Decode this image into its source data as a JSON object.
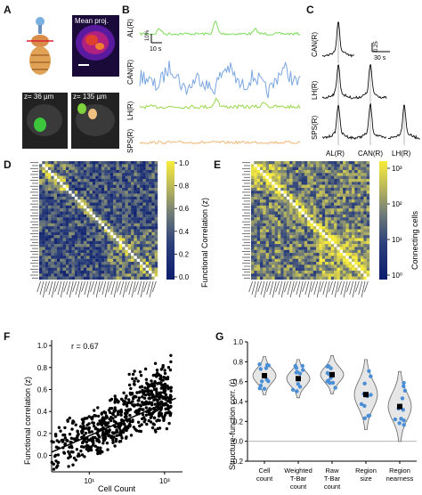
{
  "panels": {
    "A": {
      "letter": "A",
      "mean_proj_label": "Mean proj.",
      "z1_label": "z= 36  µm",
      "z2_label": "z= 135 µm"
    },
    "B": {
      "letter": "B",
      "traces": [
        {
          "label": "AL(R)",
          "color": "#7ddc5a"
        },
        {
          "label": "CAN(R)",
          "color": "#7aa6e0"
        },
        {
          "label": "LH(R)",
          "color": "#9ad64b"
        },
        {
          "label": "SPS(R)",
          "color": "#f0b673"
        }
      ],
      "scale_y": "10%",
      "scale_x": "10 s"
    },
    "C": {
      "letter": "C",
      "row_labels": [
        "CAN(R)",
        "LH(R)",
        "SPS(R)"
      ],
      "col_labels": [
        "AL(R)",
        "CAN(R)",
        "LH(R)"
      ],
      "scale_y": "0.25",
      "scale_x": "30 s"
    },
    "D": {
      "letter": "D",
      "colorbar_label": "Functional Correlation (z)",
      "colorbar_ticks": [
        "1.0",
        "0.8",
        "0.6",
        "0.4",
        "0.2",
        "0.0"
      ]
    },
    "E": {
      "letter": "E",
      "colorbar_label": "Connecting cells",
      "colorbar_ticks": [
        "10³",
        "10²",
        "10¹",
        "10⁰"
      ]
    },
    "F": {
      "letter": "F",
      "annotation": "r = 0.67",
      "xlabel": "Cell Count",
      "ylabel": "Functional correlation (z)"
    },
    "G": {
      "letter": "G",
      "ylabel": "Structure-function corr. (r)"
    }
  },
  "chart_data": [
    {
      "type": "scatter",
      "panel": "F",
      "title": "",
      "xlabel": "Cell Count",
      "ylabel": "Functional correlation (z)",
      "x_scale": "log",
      "xlim": [
        1,
        3000
      ],
      "ylim": [
        -0.15,
        1.05
      ],
      "xticks": [
        "10¹",
        "10³"
      ],
      "yticks": [
        "0.0",
        "0.2",
        "0.4",
        "0.6",
        "0.8",
        "1.0"
      ],
      "annotation": "r = 0.67",
      "trend_line": {
        "x": [
          1,
          2000
        ],
        "y": [
          0.03,
          0.52
        ]
      }
    },
    {
      "type": "violin",
      "panel": "G",
      "title": "",
      "ylabel": "Structure-function corr. (r)",
      "ylim": [
        -0.2,
        1.0
      ],
      "yticks": [
        "-0.2",
        "0.0",
        "0.2",
        "0.4",
        "0.6",
        "0.8",
        "1.0"
      ],
      "categories": [
        "Cell count",
        "Weighted T-Bar count",
        "Raw T-Bar count",
        "Region size",
        "Region nearness"
      ],
      "category_lines": [
        [
          "Cell",
          "count"
        ],
        [
          "Weighted",
          "T-Bar",
          "count"
        ],
        [
          "Raw",
          "T-Bar",
          "count"
        ],
        [
          "Region",
          "size"
        ],
        [
          "Region",
          "nearness"
        ]
      ],
      "means": [
        0.66,
        0.63,
        0.67,
        0.47,
        0.35
      ]
    },
    {
      "type": "heatmap",
      "panel": "D",
      "colorbar_label": "Functional Correlation (z)",
      "range": [
        0.0,
        1.0
      ]
    },
    {
      "type": "heatmap",
      "panel": "E",
      "colorbar_label": "Connecting cells",
      "scale": "log",
      "range": [
        "10⁰",
        "10³"
      ]
    }
  ]
}
